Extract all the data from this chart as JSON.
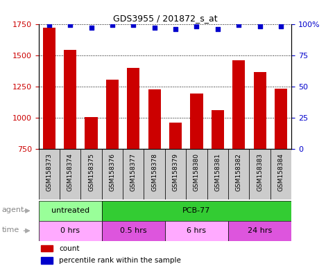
{
  "title": "GDS3955 / 201872_s_at",
  "samples": [
    "GSM158373",
    "GSM158374",
    "GSM158375",
    "GSM158376",
    "GSM158377",
    "GSM158378",
    "GSM158379",
    "GSM158380",
    "GSM158381",
    "GSM158382",
    "GSM158383",
    "GSM158384"
  ],
  "counts": [
    1720,
    1540,
    1005,
    1305,
    1400,
    1225,
    960,
    1195,
    1060,
    1460,
    1365,
    1235
  ],
  "percentile_ranks": [
    99,
    99,
    97,
    99,
    99,
    97,
    96,
    98,
    96,
    99,
    98,
    98
  ],
  "ylim_left": [
    750,
    1750
  ],
  "ylim_right": [
    0,
    100
  ],
  "yticks_left": [
    750,
    1000,
    1250,
    1500,
    1750
  ],
  "yticks_right": [
    0,
    25,
    50,
    75,
    100
  ],
  "bar_color": "#cc0000",
  "dot_color": "#0000cc",
  "agent_row": [
    {
      "label": "untreated",
      "start": 0,
      "end": 3,
      "color": "#99ff99"
    },
    {
      "label": "PCB-77",
      "start": 3,
      "end": 12,
      "color": "#33cc33"
    }
  ],
  "time_row": [
    {
      "label": "0 hrs",
      "start": 0,
      "end": 3,
      "color": "#ffaaff"
    },
    {
      "label": "0.5 hrs",
      "start": 3,
      "end": 6,
      "color": "#dd55dd"
    },
    {
      "label": "6 hrs",
      "start": 6,
      "end": 9,
      "color": "#ffaaff"
    },
    {
      "label": "24 hrs",
      "start": 9,
      "end": 12,
      "color": "#dd55dd"
    }
  ],
  "legend_items": [
    {
      "label": "count",
      "color": "#cc0000"
    },
    {
      "label": "percentile rank within the sample",
      "color": "#0000cc"
    }
  ],
  "left_axis_color": "#cc0000",
  "right_axis_color": "#0000cc",
  "tick_bg_color": "#cccccc",
  "bar_bottom": 750
}
